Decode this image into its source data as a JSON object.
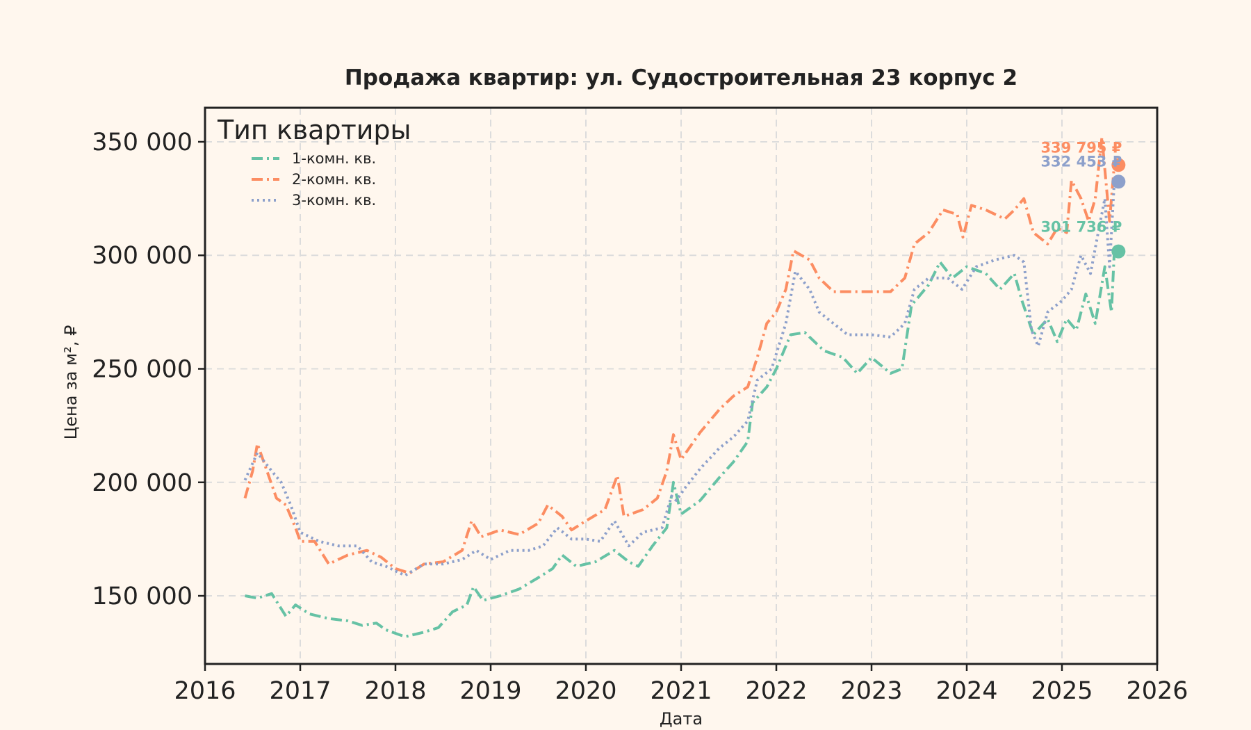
{
  "chart_data": {
    "type": "line",
    "title": "Продажа квартир: ул. Судостроительная 23 корпус 2",
    "xlabel": "Дата",
    "ylabel": "Цена за м², ₽",
    "xlim": [
      2016,
      2026
    ],
    "ylim": [
      120000,
      365000
    ],
    "x_ticks": [
      2016,
      2017,
      2018,
      2019,
      2020,
      2021,
      2022,
      2023,
      2024,
      2025,
      2026
    ],
    "x_tick_labels": [
      "2016",
      "2017",
      "2018",
      "2019",
      "2020",
      "2021",
      "2022",
      "2023",
      "2024",
      "2025",
      "2026"
    ],
    "y_ticks": [
      150000,
      200000,
      250000,
      300000,
      350000
    ],
    "y_tick_labels": [
      "150 000",
      "200 000",
      "250 000",
      "300 000",
      "350 000"
    ],
    "grid": true,
    "legend": {
      "title": "Тип квартиры",
      "position": "top-left"
    },
    "series": [
      {
        "name": "1-комн. кв.",
        "color": "#66c2a5",
        "dash": "dashdot",
        "end_label": "301 736 ₽",
        "end_value": 301736,
        "points": [
          [
            2016.42,
            150000
          ],
          [
            2016.55,
            149000
          ],
          [
            2016.7,
            151000
          ],
          [
            2016.85,
            141000
          ],
          [
            2016.95,
            146000
          ],
          [
            2017.1,
            142000
          ],
          [
            2017.3,
            140000
          ],
          [
            2017.5,
            139000
          ],
          [
            2017.65,
            137000
          ],
          [
            2017.8,
            138000
          ],
          [
            2017.9,
            135000
          ],
          [
            2018.1,
            132000
          ],
          [
            2018.3,
            134000
          ],
          [
            2018.45,
            136000
          ],
          [
            2018.6,
            143000
          ],
          [
            2018.75,
            146000
          ],
          [
            2018.82,
            154000
          ],
          [
            2018.92,
            148000
          ],
          [
            2019.1,
            150000
          ],
          [
            2019.3,
            153000
          ],
          [
            2019.5,
            158000
          ],
          [
            2019.65,
            162000
          ],
          [
            2019.75,
            168000
          ],
          [
            2019.9,
            163000
          ],
          [
            2020.1,
            165000
          ],
          [
            2020.3,
            170000
          ],
          [
            2020.45,
            165000
          ],
          [
            2020.55,
            163000
          ],
          [
            2020.7,
            172000
          ],
          [
            2020.85,
            180000
          ],
          [
            2020.92,
            200000
          ],
          [
            2021.0,
            186000
          ],
          [
            2021.2,
            192000
          ],
          [
            2021.4,
            202000
          ],
          [
            2021.55,
            209000
          ],
          [
            2021.7,
            218000
          ],
          [
            2021.75,
            235000
          ],
          [
            2021.9,
            242000
          ],
          [
            2022.0,
            250000
          ],
          [
            2022.15,
            265000
          ],
          [
            2022.3,
            266000
          ],
          [
            2022.5,
            258000
          ],
          [
            2022.7,
            255000
          ],
          [
            2022.85,
            248000
          ],
          [
            2023.0,
            255000
          ],
          [
            2023.2,
            248000
          ],
          [
            2023.32,
            250000
          ],
          [
            2023.42,
            278000
          ],
          [
            2023.6,
            287000
          ],
          [
            2023.72,
            297000
          ],
          [
            2023.85,
            290000
          ],
          [
            2024.0,
            295000
          ],
          [
            2024.2,
            292000
          ],
          [
            2024.35,
            285000
          ],
          [
            2024.5,
            292000
          ],
          [
            2024.58,
            280000
          ],
          [
            2024.7,
            265000
          ],
          [
            2024.85,
            272000
          ],
          [
            2024.95,
            262000
          ],
          [
            2025.05,
            272000
          ],
          [
            2025.15,
            267000
          ],
          [
            2025.25,
            283000
          ],
          [
            2025.35,
            270000
          ],
          [
            2025.45,
            295000
          ],
          [
            2025.52,
            275000
          ],
          [
            2025.55,
            301736
          ]
        ]
      },
      {
        "name": "2-комн. кв.",
        "color": "#fc8d62",
        "dash": "dashdot",
        "end_label": "339 795 ₽",
        "end_value": 339795,
        "points": [
          [
            2016.42,
            193000
          ],
          [
            2016.5,
            205000
          ],
          [
            2016.55,
            217000
          ],
          [
            2016.65,
            205000
          ],
          [
            2016.75,
            193000
          ],
          [
            2016.85,
            190000
          ],
          [
            2016.95,
            180000
          ],
          [
            2017.0,
            174000
          ],
          [
            2017.15,
            174000
          ],
          [
            2017.3,
            164000
          ],
          [
            2017.5,
            168000
          ],
          [
            2017.7,
            170000
          ],
          [
            2017.85,
            167000
          ],
          [
            2018.0,
            162000
          ],
          [
            2018.15,
            160000
          ],
          [
            2018.3,
            164000
          ],
          [
            2018.5,
            165000
          ],
          [
            2018.7,
            170000
          ],
          [
            2018.8,
            183000
          ],
          [
            2018.9,
            176000
          ],
          [
            2019.1,
            179000
          ],
          [
            2019.3,
            177000
          ],
          [
            2019.5,
            182000
          ],
          [
            2019.6,
            190000
          ],
          [
            2019.75,
            185000
          ],
          [
            2019.85,
            179000
          ],
          [
            2020.0,
            183000
          ],
          [
            2020.2,
            188000
          ],
          [
            2020.33,
            203000
          ],
          [
            2020.4,
            185000
          ],
          [
            2020.6,
            188000
          ],
          [
            2020.75,
            193000
          ],
          [
            2020.85,
            205000
          ],
          [
            2020.92,
            221000
          ],
          [
            2021.0,
            210000
          ],
          [
            2021.2,
            222000
          ],
          [
            2021.4,
            232000
          ],
          [
            2021.55,
            238000
          ],
          [
            2021.7,
            242000
          ],
          [
            2021.8,
            255000
          ],
          [
            2021.9,
            270000
          ],
          [
            2022.0,
            275000
          ],
          [
            2022.1,
            285000
          ],
          [
            2022.18,
            302000
          ],
          [
            2022.35,
            298000
          ],
          [
            2022.45,
            290000
          ],
          [
            2022.6,
            284000
          ],
          [
            2022.8,
            284000
          ],
          [
            2023.0,
            284000
          ],
          [
            2023.2,
            284000
          ],
          [
            2023.35,
            290000
          ],
          [
            2023.45,
            305000
          ],
          [
            2023.6,
            310000
          ],
          [
            2023.75,
            320000
          ],
          [
            2023.9,
            318000
          ],
          [
            2023.96,
            308000
          ],
          [
            2024.05,
            322000
          ],
          [
            2024.2,
            320000
          ],
          [
            2024.4,
            316000
          ],
          [
            2024.5,
            320000
          ],
          [
            2024.6,
            325000
          ],
          [
            2024.7,
            310000
          ],
          [
            2024.85,
            305000
          ],
          [
            2024.95,
            312000
          ],
          [
            2025.05,
            310000
          ],
          [
            2025.1,
            333000
          ],
          [
            2025.2,
            325000
          ],
          [
            2025.28,
            315000
          ],
          [
            2025.35,
            325000
          ],
          [
            2025.42,
            352000
          ],
          [
            2025.5,
            315000
          ],
          [
            2025.55,
            339795
          ]
        ]
      },
      {
        "name": "3-комн. кв.",
        "color": "#8da0cb",
        "dash": "dot",
        "end_label": "332 453 ₽",
        "end_value": 332453,
        "points": [
          [
            2016.42,
            201000
          ],
          [
            2016.55,
            213000
          ],
          [
            2016.7,
            205000
          ],
          [
            2016.8,
            200000
          ],
          [
            2016.9,
            190000
          ],
          [
            2017.0,
            178000
          ],
          [
            2017.2,
            174000
          ],
          [
            2017.4,
            172000
          ],
          [
            2017.6,
            172000
          ],
          [
            2017.75,
            165000
          ],
          [
            2017.9,
            163000
          ],
          [
            2018.1,
            159000
          ],
          [
            2018.3,
            164000
          ],
          [
            2018.5,
            164000
          ],
          [
            2018.7,
            166000
          ],
          [
            2018.85,
            170000
          ],
          [
            2019.0,
            166000
          ],
          [
            2019.2,
            170000
          ],
          [
            2019.4,
            170000
          ],
          [
            2019.55,
            172000
          ],
          [
            2019.7,
            180000
          ],
          [
            2019.85,
            175000
          ],
          [
            2020.0,
            175000
          ],
          [
            2020.15,
            174000
          ],
          [
            2020.3,
            183000
          ],
          [
            2020.45,
            172000
          ],
          [
            2020.6,
            178000
          ],
          [
            2020.8,
            180000
          ],
          [
            2020.9,
            194000
          ],
          [
            2020.95,
            192000
          ],
          [
            2021.05,
            198000
          ],
          [
            2021.2,
            206000
          ],
          [
            2021.4,
            215000
          ],
          [
            2021.55,
            220000
          ],
          [
            2021.7,
            227000
          ],
          [
            2021.8,
            245000
          ],
          [
            2021.95,
            250000
          ],
          [
            2022.1,
            270000
          ],
          [
            2022.2,
            293000
          ],
          [
            2022.35,
            285000
          ],
          [
            2022.45,
            275000
          ],
          [
            2022.6,
            270000
          ],
          [
            2022.75,
            265000
          ],
          [
            2022.9,
            265000
          ],
          [
            2023.0,
            265000
          ],
          [
            2023.2,
            264000
          ],
          [
            2023.35,
            270000
          ],
          [
            2023.45,
            285000
          ],
          [
            2023.6,
            290000
          ],
          [
            2023.8,
            290000
          ],
          [
            2023.95,
            285000
          ],
          [
            2024.1,
            295000
          ],
          [
            2024.3,
            298000
          ],
          [
            2024.5,
            300000
          ],
          [
            2024.6,
            297000
          ],
          [
            2024.68,
            267000
          ],
          [
            2024.75,
            260000
          ],
          [
            2024.85,
            275000
          ],
          [
            2025.0,
            280000
          ],
          [
            2025.1,
            285000
          ],
          [
            2025.2,
            300000
          ],
          [
            2025.3,
            292000
          ],
          [
            2025.38,
            310000
          ],
          [
            2025.45,
            325000
          ],
          [
            2025.5,
            295000
          ],
          [
            2025.55,
            332453
          ]
        ]
      }
    ]
  }
}
